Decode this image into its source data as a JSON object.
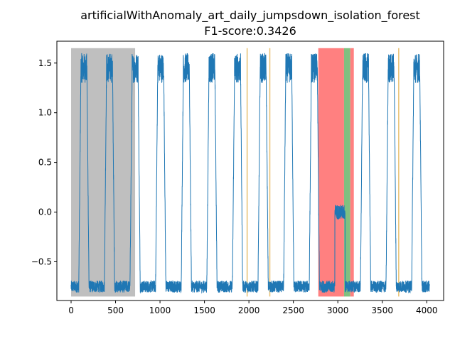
{
  "chart_data": {
    "type": "line",
    "title": "artificialWithAnomaly_art_daily_jumpsdown_isolation_forest",
    "subtitle": "F1-score:0.3426",
    "xlabel": "",
    "ylabel": "",
    "xlim": [
      -160,
      4190
    ],
    "ylim": [
      -0.89,
      1.72
    ],
    "xticks": [
      0,
      500,
      1000,
      1500,
      2000,
      2500,
      3000,
      3500,
      4000
    ],
    "yticks": [
      -0.5,
      0.0,
      0.5,
      1.0,
      1.5
    ],
    "ytick_labels": [
      "−0.5",
      "0.0",
      "0.5",
      "1.0",
      "1.5"
    ],
    "grid": false,
    "series_color": "#1f77b4",
    "signal": {
      "n_points": 4032,
      "period": 288,
      "low_level": -0.75,
      "high_level": 1.35,
      "high_peak": 1.65,
      "anomaly_level": 0.0,
      "anomaly_window": [
        2880,
        3168
      ]
    },
    "regions": [
      {
        "kind": "gray",
        "color": "#bfbfbf",
        "x": [
          0,
          720
        ],
        "y": [
          -0.85,
          1.65
        ]
      },
      {
        "kind": "red",
        "color": "#ff8080",
        "x": [
          2780,
          3070
        ],
        "y": [
          -0.85,
          1.65
        ]
      },
      {
        "kind": "green",
        "color": "#80c080",
        "x": [
          3070,
          3140
        ],
        "y": [
          -0.85,
          1.65
        ]
      },
      {
        "kind": "red",
        "color": "#ff8080",
        "x": [
          3140,
          3180
        ],
        "y": [
          -0.85,
          1.65
        ]
      }
    ],
    "markers": [
      {
        "color": "#e8c070",
        "x": 3685
      },
      {
        "color": "#e8c070",
        "x": 1980
      },
      {
        "color": "#e8c070",
        "x": 2235
      }
    ]
  }
}
